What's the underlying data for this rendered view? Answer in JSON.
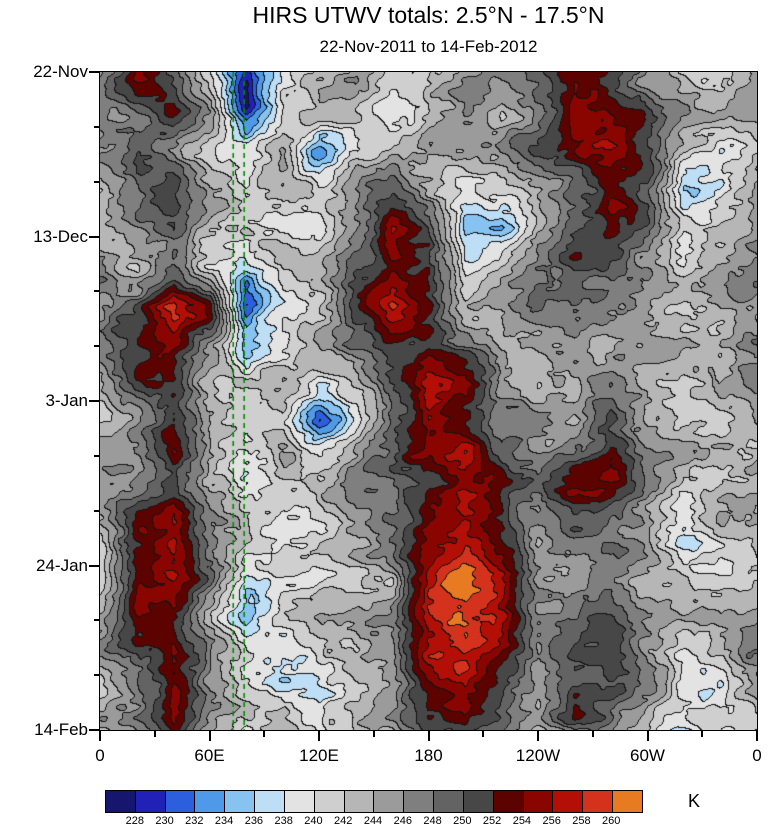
{
  "title": "HIRS UTWV totals: 2.5°N - 17.5°N",
  "subtitle": "22-Nov-2011 to 14-Feb-2012",
  "colorbar": {
    "labels": [
      "228",
      "230",
      "232",
      "234",
      "236",
      "238",
      "240",
      "242",
      "244",
      "246",
      "248",
      "250",
      "252",
      "254",
      "256",
      "258",
      "260"
    ],
    "unit": "K"
  },
  "chart_data": {
    "type": "heatmap",
    "plot_kind": "filled-contour hovmoller (time vs longitude)",
    "title": "HIRS UTWV totals: 2.5°N - 17.5°N",
    "subtitle": "22-Nov-2011 to 14-Feb-2012",
    "units": "K",
    "x_axis": {
      "label_ticks": [
        "0",
        "60E",
        "120E",
        "180",
        "120W",
        "60W",
        "0"
      ],
      "lon_values": [
        0,
        60,
        120,
        180,
        240,
        300,
        360
      ],
      "range_deg": [
        0,
        360
      ],
      "minor_step_deg": 30
    },
    "y_axis": {
      "label_ticks": [
        "22-Nov",
        "13-Dec",
        "3-Jan",
        "24-Jan",
        "14-Feb"
      ],
      "day_values": [
        0,
        21,
        42,
        63,
        84
      ],
      "range_days": [
        0,
        84
      ],
      "minor_step_days": 7
    },
    "levels": [
      228,
      230,
      232,
      234,
      236,
      238,
      240,
      242,
      244,
      246,
      248,
      250,
      252,
      254,
      256,
      258,
      260
    ],
    "palette": [
      "#16166e",
      "#2121b8",
      "#2b5fdd",
      "#4f9ae8",
      "#86c3f1",
      "#bedef6",
      "#e3e3e3",
      "#cfcfcf",
      "#b6b6b6",
      "#9b9b9b",
      "#7f7f7f",
      "#636363",
      "#474747",
      "#5c0300",
      "#8a0500",
      "#b30f06",
      "#d4321c",
      "#e87a22"
    ],
    "contour_line_color": "#141414",
    "highlight_lines": {
      "color": "#008a00",
      "dash": true,
      "lons": [
        73,
        79
      ]
    },
    "grid_col_lons": [
      0,
      20,
      40,
      60,
      80,
      100,
      120,
      140,
      160,
      180,
      200,
      220,
      240,
      260,
      280,
      300,
      320,
      340,
      360
    ],
    "grid_rows_span_days": [
      0,
      84
    ],
    "rows_top_to_bottom": true,
    "values": [
      [
        245,
        252,
        250,
        243,
        230,
        240,
        243,
        245,
        242,
        241,
        244,
        246,
        249,
        253,
        251,
        247,
        244,
        242,
        245
      ],
      [
        247,
        250,
        253,
        244,
        229,
        241,
        244,
        242,
        240,
        243,
        246,
        244,
        247,
        255,
        253,
        249,
        245,
        243,
        247
      ],
      [
        244,
        249,
        247,
        242,
        239,
        243,
        233,
        241,
        243,
        244,
        242,
        246,
        249,
        251,
        255,
        251,
        243,
        241,
        244
      ],
      [
        243,
        247,
        251,
        245,
        241,
        244,
        240,
        245,
        247,
        242,
        240,
        243,
        246,
        249,
        253,
        247,
        236,
        239,
        243
      ],
      [
        245,
        246,
        249,
        243,
        242,
        240,
        239,
        246,
        255,
        250,
        233,
        234,
        244,
        247,
        252,
        249,
        240,
        242,
        245
      ],
      [
        247,
        244,
        249,
        242,
        237,
        242,
        244,
        250,
        253,
        251,
        238,
        241,
        246,
        251,
        249,
        245,
        239,
        244,
        247
      ],
      [
        245,
        248,
        259,
        253,
        229,
        237,
        242,
        252,
        259,
        253,
        244,
        246,
        248,
        249,
        246,
        243,
        242,
        246,
        245
      ],
      [
        246,
        251,
        254,
        247,
        236,
        241,
        244,
        248,
        251,
        250,
        246,
        243,
        245,
        247,
        244,
        246,
        244,
        242,
        246
      ],
      [
        244,
        249,
        251,
        245,
        242,
        244,
        240,
        243,
        251,
        258,
        254,
        246,
        243,
        245,
        248,
        244,
        240,
        243,
        244
      ],
      [
        242,
        247,
        253,
        243,
        240,
        242,
        233,
        241,
        247,
        256,
        253,
        247,
        245,
        243,
        249,
        245,
        242,
        240,
        242
      ],
      [
        244,
        245,
        251,
        241,
        238,
        243,
        241,
        245,
        249,
        253,
        257,
        249,
        245,
        252,
        255,
        247,
        243,
        241,
        244
      ],
      [
        246,
        249,
        253,
        245,
        240,
        241,
        243,
        247,
        245,
        251,
        257,
        251,
        247,
        253,
        251,
        245,
        239,
        243,
        246
      ],
      [
        244,
        252,
        255,
        247,
        242,
        239,
        241,
        243,
        247,
        253,
        257,
        253,
        245,
        249,
        247,
        243,
        235,
        241,
        244
      ],
      [
        242,
        254,
        257,
        249,
        238,
        241,
        239,
        241,
        245,
        257,
        260,
        257,
        247,
        245,
        249,
        245,
        241,
        239,
        242
      ],
      [
        244,
        256,
        255,
        245,
        233,
        239,
        243,
        245,
        247,
        259,
        262,
        259,
        249,
        247,
        251,
        247,
        243,
        241,
        244
      ],
      [
        246,
        251,
        253,
        243,
        239,
        237,
        241,
        243,
        249,
        259,
        261,
        255,
        247,
        251,
        253,
        245,
        239,
        243,
        246
      ],
      [
        244,
        247,
        255,
        247,
        241,
        239,
        237,
        241,
        245,
        253,
        257,
        251,
        245,
        253,
        251,
        247,
        241,
        239,
        244
      ],
      [
        242,
        245,
        253,
        245,
        239,
        241,
        239,
        243,
        243,
        251,
        253,
        247,
        243,
        249,
        247,
        243,
        239,
        241,
        242
      ]
    ]
  }
}
